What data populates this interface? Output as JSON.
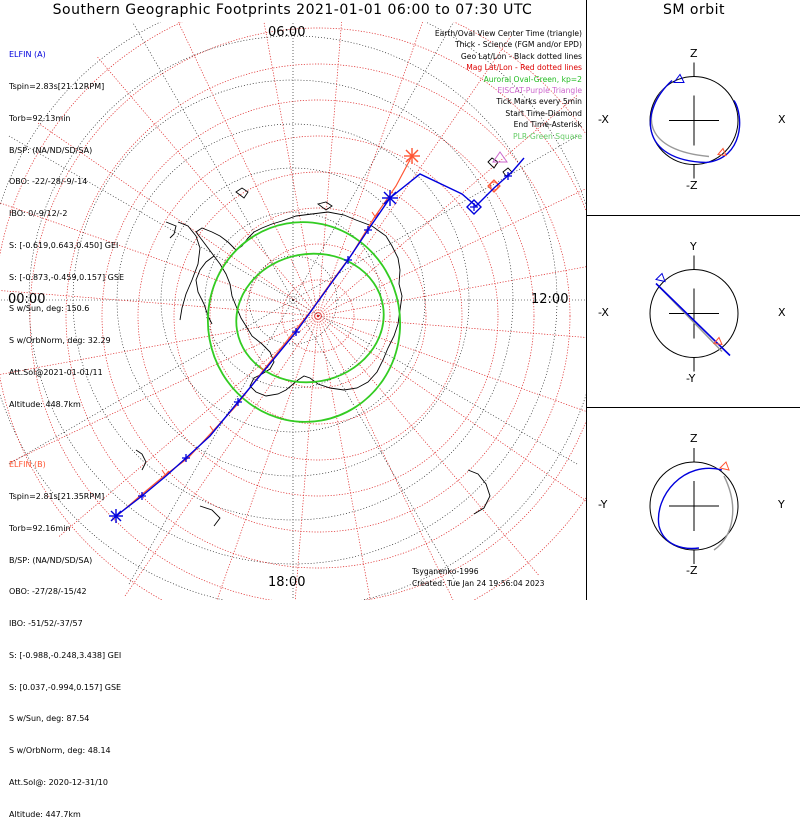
{
  "title": "Southern Geographic Footprints 2021-01-01 06:00 to 07:30 UTC",
  "sm_title": "SM orbit",
  "map": {
    "hour_labels": {
      "top": "06:00",
      "left": "00:00",
      "right": "12:00",
      "bottom": "18:00"
    },
    "colors": {
      "geo_grid": "#000000",
      "mag_grid": "#dd2222",
      "track_a": "#0000dd",
      "track_b": "#ff5533",
      "oval": "#33cc22",
      "coast": "#000000"
    }
  },
  "elfin_a": {
    "header": "ELFIN (A)",
    "lines": [
      "Tspin=2.83s[21.12RPM]",
      "Torb=92.13min",
      "B/SP: (NA/ND/SD/SA)",
      "OBO: -22/-28/-9/-14",
      "IBO: 0/-9/12/-2",
      "S: [-0.619,0.643,0.450] GEI",
      "S: [-0.873,-0.459,0.157] GSE",
      "S w/Sun, deg: 150.6",
      "S w/OrbNorm, deg: 32.29",
      "Att.Sol@2021-01-01/11",
      "Altitude: 448.7km"
    ]
  },
  "elfin_b": {
    "header": "ELFIN (B)",
    "lines": [
      "Tspin=2.81s[21.35RPM]",
      "Torb=92.16min",
      "B/SP: (NA/ND/SD/SA)",
      "OBO: -27/28/-15/42",
      "IBO: -51/52/-37/57",
      "S: [-0.988,-0.248,3.438] GEI",
      "S: [0.037,-0.994,0.157] GSE",
      "S w/Sun, deg: 87.54",
      "S w/OrbNorm, deg: 48.14",
      "Att.Sol@: 2020-12-31/10",
      "Altitude: 447.7km"
    ]
  },
  "legend": [
    {
      "text": "Earth/Oval View Center Time (triangle)",
      "color": "#000000"
    },
    {
      "text": "Thick - Science (FGM and/or EPD)",
      "color": "#000000"
    },
    {
      "text": "Geo Lat/Lon - Black dotted lines",
      "color": "#000000"
    },
    {
      "text": "Mag Lat/Lon - Red dotted lines",
      "color": "#dd0000"
    },
    {
      "text": "Auroral Oval-Green, kp=2",
      "color": "#22bb22"
    },
    {
      "text": "EISCAT-Purple Triangle",
      "color": "#cc66cc"
    },
    {
      "text": "Tick Marks every 5min",
      "color": "#000000"
    },
    {
      "text": "Start Time-Diamond",
      "color": "#000000"
    },
    {
      "text": "End Time-Asterisk",
      "color": "#000000"
    },
    {
      "text": "PLR-Green Square",
      "color": "#66cc66"
    }
  ],
  "credits": {
    "author": "Tsyganenko-1996",
    "created": "Created: Tue Jan 24 19:56:04 2023"
  },
  "sm_orbit": {
    "panels": [
      {
        "top": "Z",
        "bottom": "-Z",
        "left": "-X",
        "right": "X"
      },
      {
        "top": "Y",
        "bottom": "-Y",
        "left": "-X",
        "right": "X"
      },
      {
        "top": "Z",
        "bottom": "-Z",
        "left": "-Y",
        "right": "Y"
      }
    ]
  }
}
